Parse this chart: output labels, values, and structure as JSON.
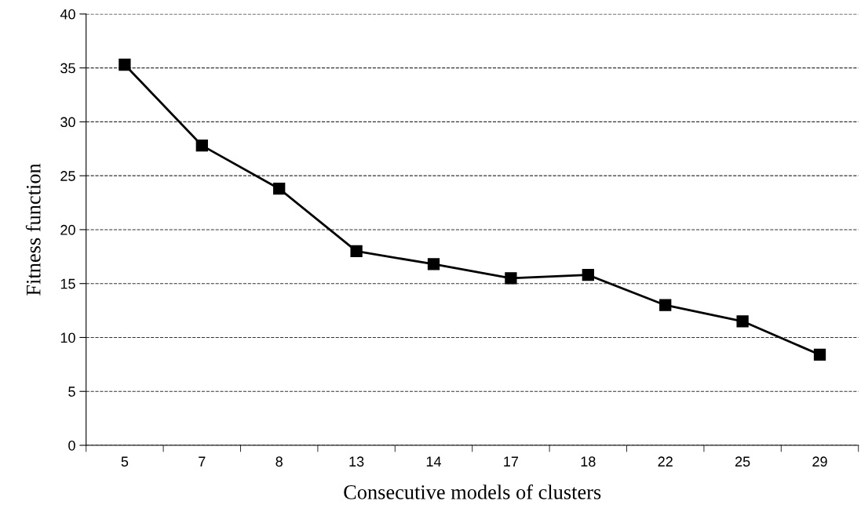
{
  "chart_data": {
    "type": "line",
    "xlabel": "Consecutive models of clusters",
    "ylabel": "Fitness function",
    "categories": [
      "5",
      "7",
      "8",
      "13",
      "14",
      "17",
      "18",
      "22",
      "25",
      "29"
    ],
    "series": [
      {
        "color": "#000000",
        "values": [
          35.3,
          27.8,
          23.8,
          18.0,
          16.8,
          15.5,
          15.8,
          13.0,
          11.5,
          8.4
        ]
      }
    ],
    "ylim": [
      0,
      40
    ],
    "yticks": [
      0,
      5,
      10,
      15,
      20,
      25,
      30,
      35,
      40
    ],
    "grid": "y",
    "marker": "square",
    "line_style": "solid",
    "legend": false
  }
}
